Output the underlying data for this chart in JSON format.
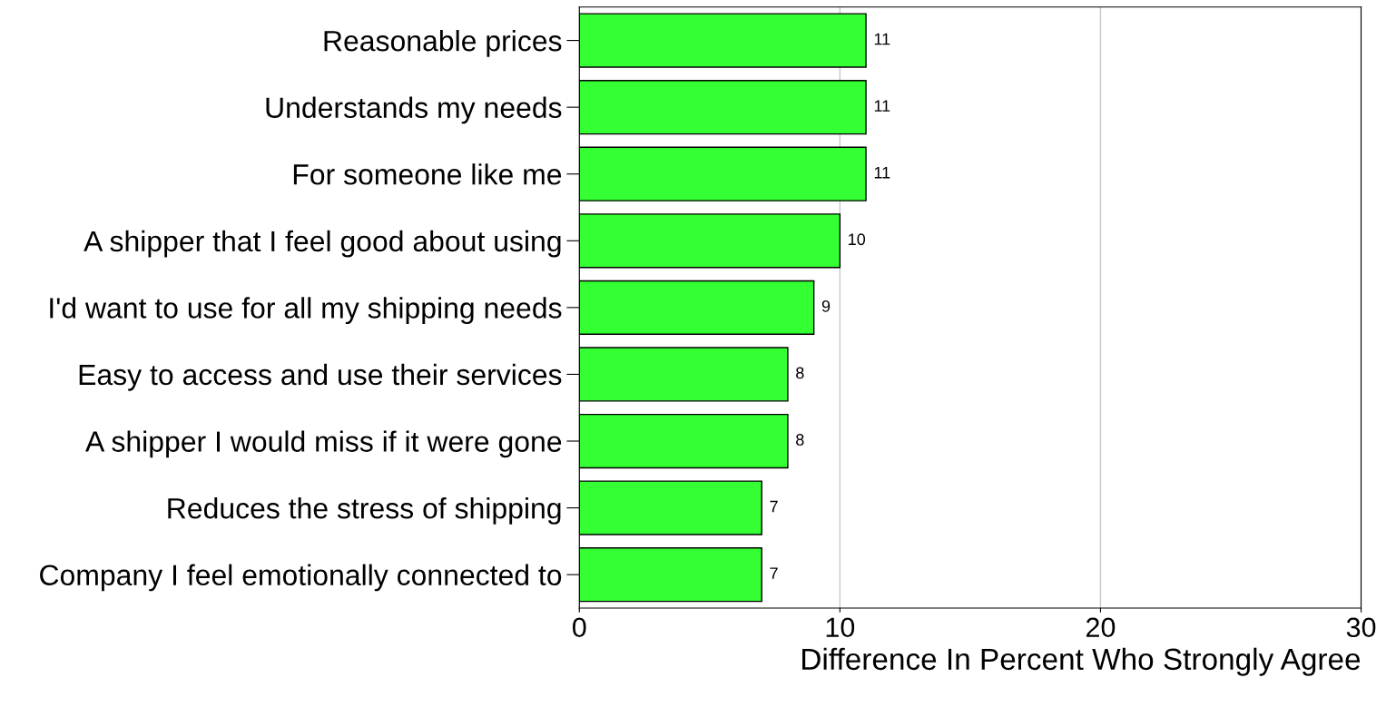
{
  "chart_data": {
    "type": "bar",
    "orientation": "horizontal",
    "xlabel": "Difference In Percent Who Strongly Agree",
    "categories": [
      "Reasonable prices",
      "Understands my needs",
      "For someone like me",
      "A shipper that I feel good about using",
      "I'd want to use for all my shipping needs",
      "Easy to access and use their services",
      "A shipper I would miss if it were gone",
      "Reduces the stress of shipping",
      "Company I feel emotionally connected to"
    ],
    "values": [
      11,
      11,
      11,
      10,
      9,
      8,
      8,
      7,
      7
    ],
    "color": "#33ff33",
    "xlim": [
      0,
      30
    ],
    "xticks": [
      0,
      10,
      20,
      30
    ],
    "grid": "x",
    "data_labels": true,
    "legend": false
  }
}
